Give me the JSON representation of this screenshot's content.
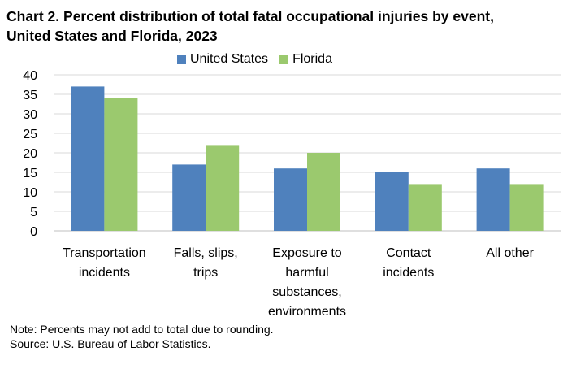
{
  "chart_data": {
    "type": "bar",
    "title_lines": [
      "Chart 2. Percent distribution of total fatal occupational injuries by event,",
      "United States and Florida, 2023"
    ],
    "categories": [
      [
        "Transportation",
        "incidents"
      ],
      [
        "Falls, slips,",
        "trips"
      ],
      [
        "Exposure to",
        "harmful",
        "substances,",
        "environments"
      ],
      [
        "Contact",
        "incidents"
      ],
      [
        "All other"
      ]
    ],
    "series": [
      {
        "name": "United States",
        "color": "#4f81bd",
        "values": [
          37,
          17,
          16,
          15,
          16
        ]
      },
      {
        "name": "Florida",
        "color": "#9bc96e",
        "values": [
          34,
          22,
          20,
          12,
          12
        ]
      }
    ],
    "ylim": [
      0,
      40
    ],
    "yticks": [
      "0",
      "5",
      "10",
      "15",
      "20",
      "25",
      "30",
      "35",
      "40"
    ],
    "grid": true,
    "legend_position": "top-center"
  },
  "notes": [
    "Note: Percents may not add to total due to rounding.",
    "Source: U.S. Bureau of Labor Statistics."
  ]
}
